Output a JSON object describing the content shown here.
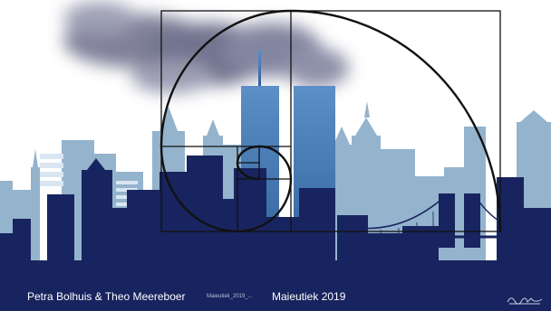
{
  "footer": {
    "authors": "Petra Bolhuis & Theo Meereboer",
    "small_caption": "Maieutiek_2019_...",
    "event": "Maieutiek 2019"
  },
  "colors": {
    "background": "#ffffff",
    "skyline_back": "#94b3cd",
    "skyline_mid": "#4f7fb0",
    "skyline_front": "#18245f",
    "towers": "#3f7ab5",
    "smoke": "#5d607e",
    "spiral": "#111111"
  }
}
